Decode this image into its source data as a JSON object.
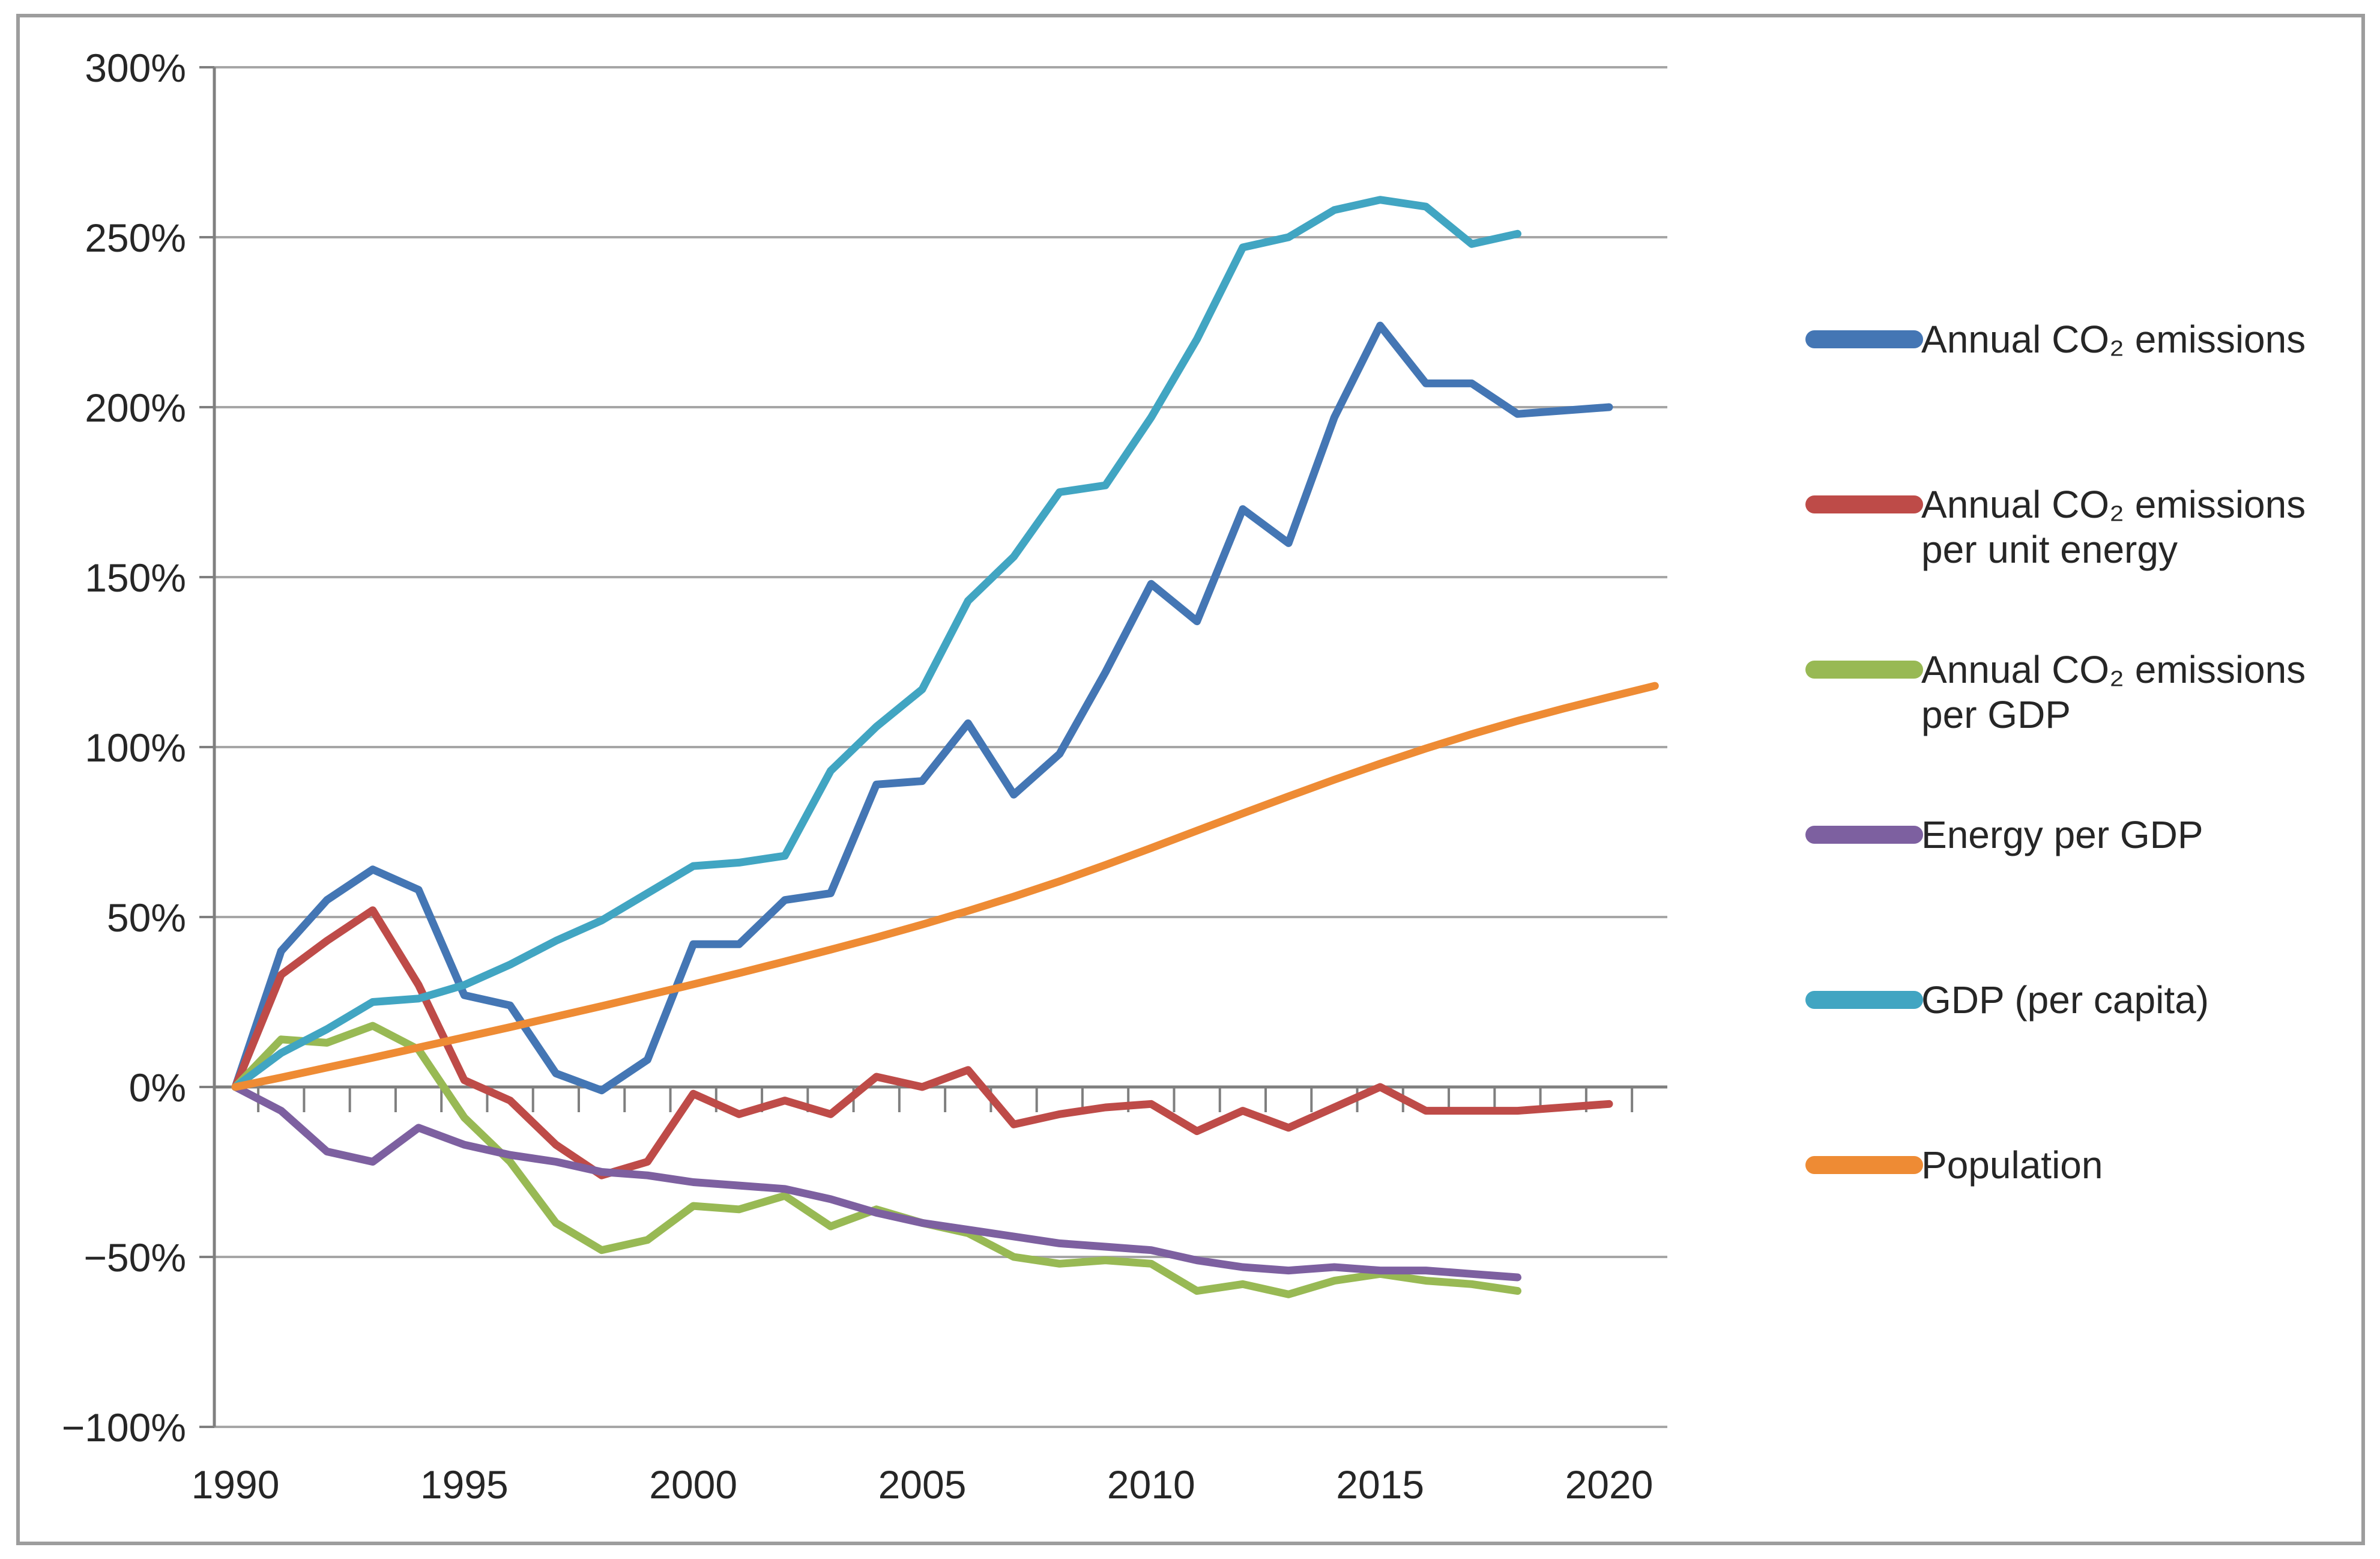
{
  "chart_data": {
    "type": "line",
    "title": "",
    "xlabel": "",
    "ylabel": "",
    "x_start_year": 1990,
    "x_end_year": 2021,
    "x_tick_label_years": [
      1990,
      1995,
      2000,
      2005,
      2010,
      2015,
      2020
    ],
    "y_axis": {
      "min": -100,
      "max": 300,
      "step": 50,
      "labels": [
        "300%",
        "250%",
        "200%",
        "150%",
        "100%",
        "50%",
        "0%",
        "−50%",
        "−100%"
      ]
    },
    "grid": true,
    "legend_position": "right",
    "series": [
      {
        "name": "Annual CO₂ emissions",
        "legend_lines": [
          "Annual CO₂ emissions"
        ],
        "color": "#4476B4",
        "start_year": 1990,
        "values": [
          0,
          40,
          55,
          64,
          58,
          27,
          24,
          4,
          -1,
          8,
          42,
          42,
          55,
          57,
          89,
          90,
          107,
          86,
          98,
          122,
          148,
          137,
          170,
          160,
          197,
          224,
          207,
          207,
          198,
          199,
          200
        ]
      },
      {
        "name": "Annual CO₂ emissions per unit energy",
        "legend_lines": [
          "Annual CO₂ emissions",
          "per unit energy"
        ],
        "color": "#BE4B48",
        "start_year": 1990,
        "values": [
          0,
          33,
          43,
          52,
          30,
          2,
          -4,
          -17,
          -26,
          -22,
          -2,
          -8,
          -4,
          -8,
          3,
          0,
          5,
          -11,
          -8,
          -6,
          -5,
          -13,
          -7,
          -12,
          -6,
          0,
          -7,
          -7,
          -7,
          -6,
          -5
        ]
      },
      {
        "name": "Annual CO₂ emissions per GDP",
        "legend_lines": [
          "Annual CO₂ emissions",
          "per GDP"
        ],
        "color": "#98B954",
        "start_year": 1990,
        "values": [
          0,
          14,
          13,
          18,
          11,
          -9,
          -22,
          -40,
          -48,
          -45,
          -35,
          -36,
          -32,
          -41,
          -36,
          -40,
          -43,
          -50,
          -52,
          -51,
          -52,
          -60,
          -58,
          -61,
          -57,
          -55,
          -57,
          -58,
          -60
        ]
      },
      {
        "name": "Energy per GDP",
        "legend_lines": [
          "Energy per GDP"
        ],
        "color": "#7D60A0",
        "start_year": 1990,
        "values": [
          0,
          -7,
          -19,
          -22,
          -12,
          -17,
          -20,
          -22,
          -25,
          -26,
          -28,
          -29,
          -30,
          -33,
          -37,
          -40,
          -42,
          -44,
          -46,
          -47,
          -48,
          -51,
          -53,
          -54,
          -53,
          -54,
          -54,
          -55,
          -56
        ]
      },
      {
        "name": "GDP (per capita)",
        "legend_lines": [
          "GDP (per capita)"
        ],
        "color": "#41A5C2",
        "start_year": 1990,
        "values": [
          0,
          10,
          17,
          25,
          26,
          30,
          36,
          43,
          49,
          57,
          65,
          66,
          68,
          93,
          106,
          117,
          143,
          156,
          175,
          177,
          197,
          220,
          247,
          250,
          258,
          261,
          259,
          248,
          251
        ]
      },
      {
        "name": "Population",
        "legend_lines": [
          "Population"
        ],
        "color": "#EE8B34",
        "start_year": 1990,
        "values": [
          0,
          2.8,
          5.7,
          8.6,
          11.6,
          14.6,
          17.6,
          20.7,
          23.8,
          27,
          30.2,
          33.5,
          36.9,
          40.4,
          44,
          47.8,
          51.8,
          56,
          60.5,
          65.3,
          70.3,
          75.4,
          80.5,
          85.5,
          90.4,
          95.1,
          99.6,
          103.8,
          107.7,
          111.3,
          114.7,
          118
        ]
      }
    ]
  }
}
